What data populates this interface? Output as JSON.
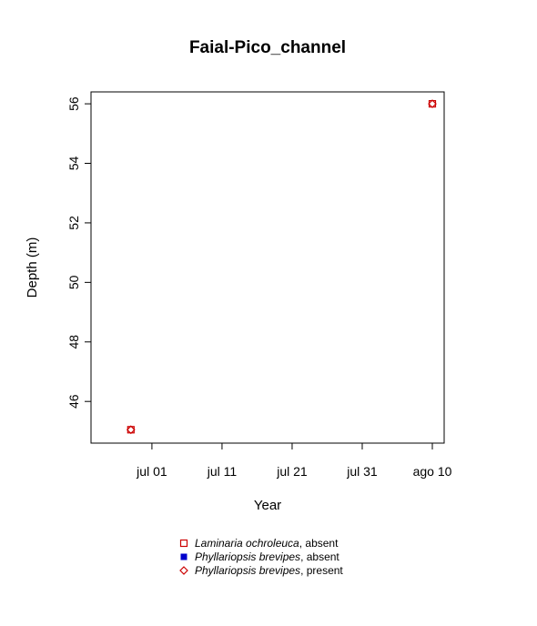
{
  "chart_data": {
    "type": "scatter",
    "title": "Faial-Pico_channel",
    "xlabel": "Year",
    "ylabel": "Depth (m)",
    "x_axis": {
      "type": "date",
      "range": [
        "2023-06-24",
        "2023-08-10"
      ],
      "ticks": [
        {
          "value": "2023-07-01",
          "label": "jul 01"
        },
        {
          "value": "2023-07-11",
          "label": "jul 11"
        },
        {
          "value": "2023-07-21",
          "label": "jul 21"
        },
        {
          "value": "2023-07-31",
          "label": "jul 31"
        },
        {
          "value": "2023-08-10",
          "label": "ago 10"
        }
      ]
    },
    "y_axis": {
      "range": [
        44.6,
        56.4
      ],
      "ticks": [
        46,
        48,
        50,
        52,
        54,
        56
      ]
    },
    "grid": false,
    "legend_position": "bottom",
    "series": [
      {
        "name_italic": "Laminaria ochroleuca",
        "name_rest": ", absent",
        "marker": "open-square",
        "color": "#cc0000",
        "points": [
          {
            "x": "2023-06-28",
            "y": 45.05
          },
          {
            "x": "2023-08-10",
            "y": 56.0
          }
        ]
      },
      {
        "name_italic": "Phyllariopsis brevipes",
        "name_rest": ", absent",
        "marker": "filled-square",
        "color": "#0000cc",
        "points": []
      },
      {
        "name_italic": "Phyllariopsis brevipes",
        "name_rest": ", present",
        "marker": "open-diamond",
        "color": "#cc0000",
        "points": [
          {
            "x": "2023-06-28",
            "y": 45.05
          },
          {
            "x": "2023-08-10",
            "y": 56.0
          }
        ]
      }
    ]
  }
}
